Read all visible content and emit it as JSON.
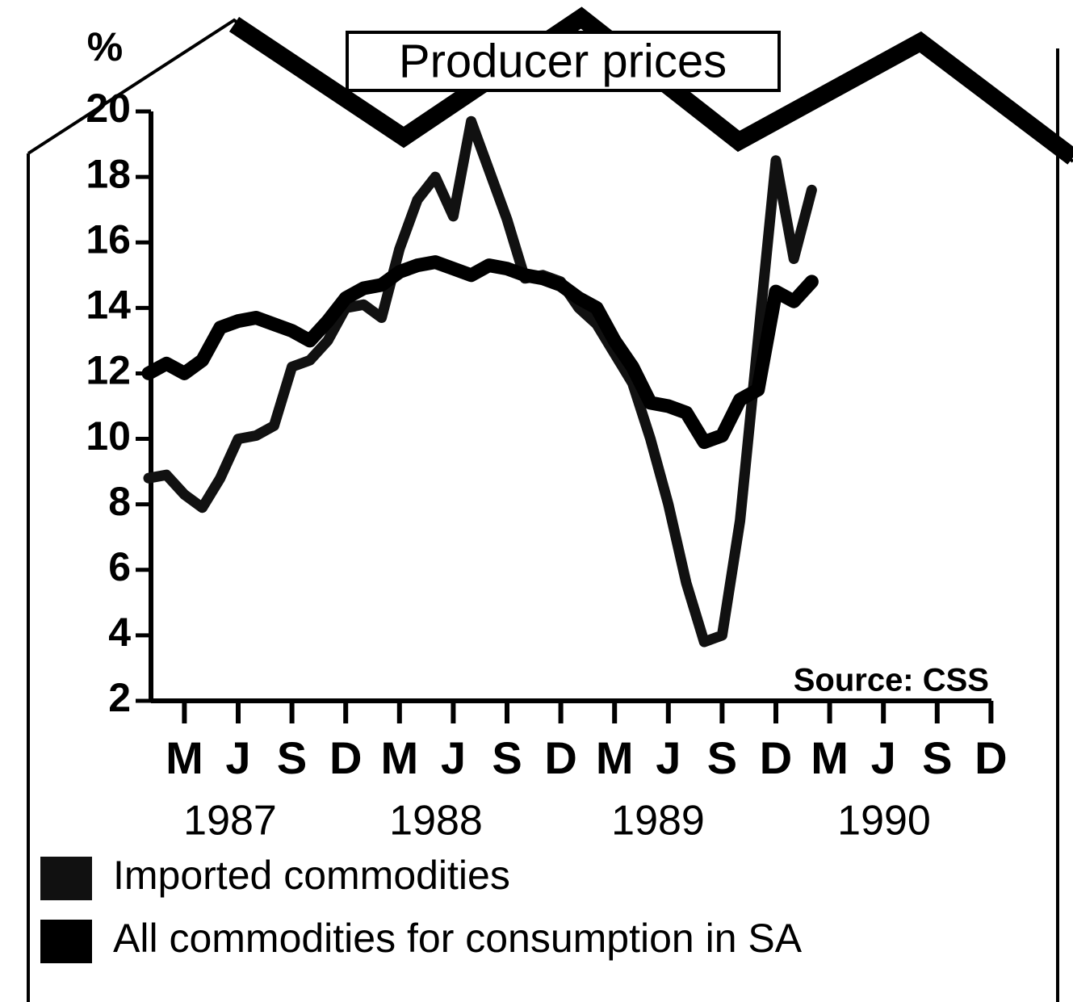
{
  "chart_data": {
    "type": "line",
    "title": "Producer prices",
    "y_label": "%",
    "source": "Source: CSS",
    "categories": [
      null,
      null,
      "M",
      null,
      null,
      "J",
      null,
      null,
      "S",
      null,
      null,
      "D",
      null,
      null,
      "M",
      null,
      null,
      "J",
      null,
      null,
      "S",
      null,
      null,
      "D",
      null,
      null,
      "M",
      null,
      null,
      "J",
      null,
      null,
      "S",
      null,
      null,
      "D",
      null,
      null,
      "M",
      null,
      null,
      "J",
      null,
      null,
      "S",
      null,
      null,
      "D"
    ],
    "years": [
      "1987",
      "1988",
      "1989",
      "1990"
    ],
    "series": [
      {
        "name": "Imported commodities",
        "color": "#111111",
        "values": [
          8.8,
          8.9,
          8.3,
          7.9,
          8.8,
          10.0,
          10.1,
          10.4,
          12.2,
          12.4,
          13.0,
          14.0,
          14.1,
          13.7,
          15.8,
          17.3,
          18.0,
          16.8,
          19.7,
          18.2,
          16.7,
          14.9,
          15.0,
          14.8,
          14.0,
          13.5,
          12.6,
          11.7,
          10.0,
          8.0,
          5.6,
          3.8,
          4.0,
          7.5,
          13.0,
          18.5,
          15.5,
          17.6,
          null,
          null,
          null,
          null,
          null,
          null,
          null,
          null,
          null,
          null
        ]
      },
      {
        "name": "All commodities for consumption in SA",
        "color": "#000000",
        "values": [
          12.0,
          12.3,
          12.0,
          12.4,
          13.4,
          13.6,
          13.7,
          13.5,
          13.3,
          13.0,
          13.6,
          14.3,
          14.6,
          14.7,
          15.1,
          15.3,
          15.4,
          15.2,
          15.0,
          15.3,
          15.2,
          15.0,
          14.9,
          14.7,
          14.3,
          14.0,
          13.0,
          12.2,
          11.1,
          11.0,
          10.8,
          9.9,
          10.1,
          11.2,
          11.5,
          14.5,
          14.2,
          14.8,
          null,
          null,
          null,
          null,
          null,
          null,
          null,
          null,
          null,
          null
        ]
      }
    ],
    "ylim": [
      2,
      20
    ],
    "yticks": [
      2,
      4,
      6,
      8,
      10,
      12,
      14,
      16,
      18,
      20
    ]
  }
}
